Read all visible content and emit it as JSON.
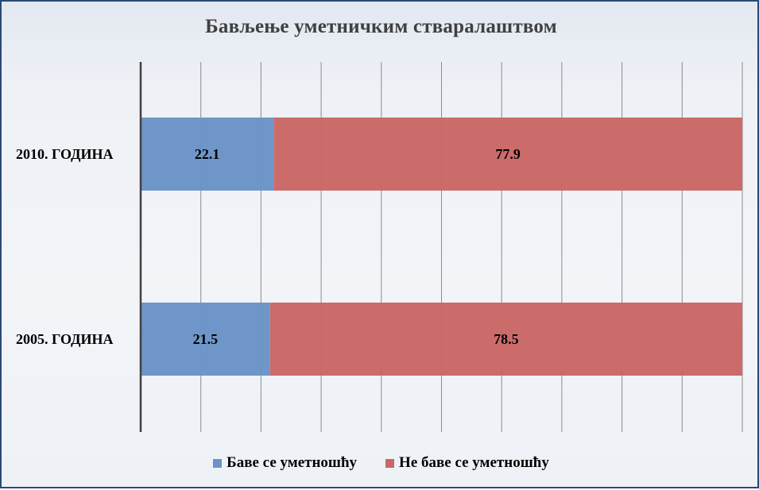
{
  "colors": {
    "series_1": "#6a93c7",
    "series_2": "#c96766",
    "grid": "#8c8c8c",
    "axis": "#404040"
  },
  "chart_data": {
    "type": "bar",
    "orientation": "horizontal",
    "stacked": true,
    "title": "Бављење уметничким стваралаштвом",
    "categories": [
      "2010. ГОДИНА",
      "2005. ГОДИНА"
    ],
    "series": [
      {
        "name": "Баве се уметношћу",
        "values": [
          22.1,
          21.5
        ]
      },
      {
        "name": "Не баве се уметношћу",
        "values": [
          77.9,
          78.5
        ]
      }
    ],
    "xlim": [
      0,
      100
    ],
    "grid": true,
    "legend": "bottom"
  }
}
